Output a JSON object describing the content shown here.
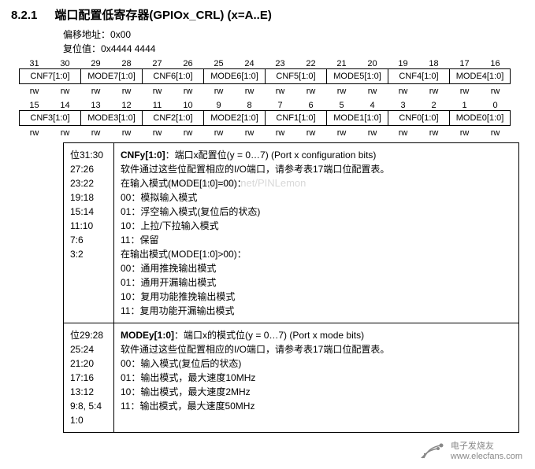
{
  "section": {
    "number": "8.2.1",
    "title": "端口配置低寄存器(GPIOx_CRL) (x=A..E)"
  },
  "offset": {
    "label": "偏移地址：",
    "value": "0x00"
  },
  "reset": {
    "label": "复位值：",
    "value": "0x4444 4444"
  },
  "bitsHigh": {
    "nums": [
      "31",
      "30",
      "29",
      "28",
      "27",
      "26",
      "25",
      "24",
      "23",
      "22",
      "21",
      "20",
      "19",
      "18",
      "17",
      "16"
    ],
    "fields": [
      "CNF7[1:0]",
      "MODE7[1:0]",
      "CNF6[1:0]",
      "MODE6[1:0]",
      "CNF5[1:0]",
      "MODE5[1:0]",
      "CNF4[1:0]",
      "MODE4[1:0]"
    ],
    "rw": [
      "rw",
      "rw",
      "rw",
      "rw",
      "rw",
      "rw",
      "rw",
      "rw",
      "rw",
      "rw",
      "rw",
      "rw",
      "rw",
      "rw",
      "rw",
      "rw"
    ]
  },
  "bitsLow": {
    "nums": [
      "15",
      "14",
      "13",
      "12",
      "11",
      "10",
      "9",
      "8",
      "7",
      "6",
      "5",
      "4",
      "3",
      "2",
      "1",
      "0"
    ],
    "fields": [
      "CNF3[1:0]",
      "MODE3[1:0]",
      "CNF2[1:0]",
      "MODE2[1:0]",
      "CNF1[1:0]",
      "MODE1[1:0]",
      "CNF0[1:0]",
      "MODE0[1:0]"
    ],
    "rw": [
      "rw",
      "rw",
      "rw",
      "rw",
      "rw",
      "rw",
      "rw",
      "rw",
      "rw",
      "rw",
      "rw",
      "rw",
      "rw",
      "rw",
      "rw",
      "rw"
    ]
  },
  "desc": [
    {
      "bits": [
        "位31:30",
        "27:26",
        "23:22",
        "19:18",
        "15:14",
        "11:10",
        "7:6",
        "3:2"
      ],
      "headerBold": "CNFy[1:0]",
      "headerRest": "：端口x配置位(y = 0…7) (Port x configuration bits)",
      "lines": [
        "软件通过这些位配置相应的I/O端口，请参考表17端口位配置表。",
        "在输入模式(MODE[1:0]=00)：",
        "00：模拟输入模式",
        "01：浮空输入模式(复位后的状态)",
        "10：上拉/下拉输入模式",
        "11：保留",
        "在输出模式(MODE[1:0]>00)：",
        "00：通用推挽输出模式",
        "01：通用开漏输出模式",
        "10：复用功能推挽输出模式",
        "11：复用功能开漏输出模式"
      ]
    },
    {
      "bits": [
        "位29:28",
        "25:24",
        "21:20",
        "17:16",
        "13:12",
        "9:8, 5:4",
        "1:0"
      ],
      "headerBold": "MODEy[1:0]",
      "headerRest": "：端口x的模式位(y = 0…7) (Port x mode bits)",
      "lines": [
        "软件通过这些位配置相应的I/O端口，请参考表17端口位配置表。",
        "00：输入模式(复位后的状态)",
        "01：输出模式，最大速度10MHz",
        "10：输出模式，最大速度2MHz",
        "11：输出模式，最大速度50MHz"
      ]
    }
  ],
  "watermark": "https://blog.csdn.net/PINLemon",
  "footer": {
    "name": "电子发烧友",
    "url": "www.elecfans.com"
  },
  "colors": {
    "background": "#ffffff",
    "text": "#000000",
    "watermark": "#d8d8d8",
    "footer": "#888888",
    "border": "#000000"
  }
}
